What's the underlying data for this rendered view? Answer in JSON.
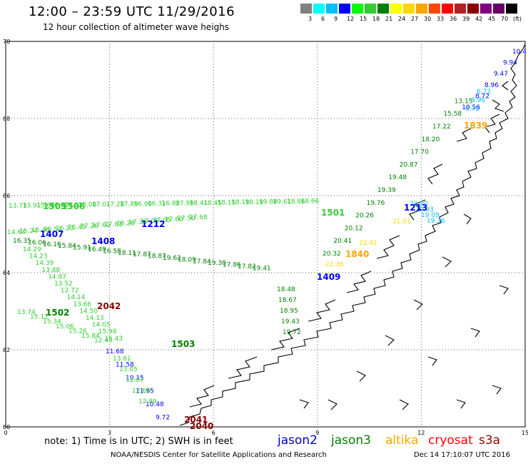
{
  "title": "12:00  –  23:59 UTC 11/29/2016",
  "subtitle": "12 hour collection of altimeter wave heighs",
  "legend": {
    "colors": [
      "#808080",
      "#00ffff",
      "#00bfff",
      "#0000ff",
      "#00ff00",
      "#32cd32",
      "#008000",
      "#ffff00",
      "#ffd700",
      "#ffa500",
      "#ff4500",
      "#ff0000",
      "#b22222",
      "#8b0000",
      "#800080",
      "#660066",
      "#000000"
    ],
    "labels": [
      "3",
      "6",
      "9",
      "12",
      "15",
      "18",
      "21",
      "24",
      "27",
      "30",
      "33",
      "36",
      "39",
      "42",
      "45",
      "70"
    ],
    "unit": "(ft)"
  },
  "axes": {
    "lat_labels": [
      "70",
      "68",
      "66",
      "64",
      "62",
      "60"
    ],
    "lon_labels": [
      "0",
      "3",
      "6",
      "9",
      "12",
      "15"
    ]
  },
  "tracks": [
    {
      "color": "#32cd32",
      "labels": [
        "13.73",
        "13.91",
        "15.60",
        "16.07",
        "16.23",
        "16.08",
        "17.01",
        "17.28",
        "17.89",
        "16.90",
        "16.31",
        "16.88",
        "17.99",
        "18.41",
        "18.45",
        "18.15",
        "18.19",
        "18.19",
        "19.88",
        "19.61",
        "18.86",
        "18.66"
      ]
    },
    {
      "color": "#32cd32",
      "labels": [
        "14.64",
        "15.24",
        "15.46",
        "16.54",
        "16.23",
        "16.45",
        "17.26",
        "17.61",
        "17.61",
        "16.28",
        "17.33",
        "17.05",
        "17.05",
        "17.60",
        "17.50",
        "17.68"
      ]
    },
    {
      "color": "#008000",
      "labels": [
        "16.35",
        "16.06",
        "16.16",
        "15.84",
        "15.91",
        "16.49",
        "16.58",
        "18.11",
        "17.87",
        "18.87",
        "19.62",
        "18.09",
        "17.84",
        "19.30",
        "17.86",
        "17.82",
        "19.41"
      ]
    },
    {
      "color": "#32cd32",
      "labels": [
        "14.29",
        "14.23",
        "14.39",
        "13.88",
        "14.87",
        "13.52",
        "12.72",
        "14.14",
        "13.66",
        "14.50",
        "14.13",
        "14.05",
        "15.98",
        "15.43"
      ]
    },
    {
      "color": "#32cd32",
      "labels": [
        "13.74",
        "15.11",
        "15.34",
        "15.06",
        "15.26",
        "15.84",
        "12.49"
      ]
    },
    {
      "color": "#0000ff",
      "labels": [
        "11.68",
        "11.58",
        "10.15",
        "11.95",
        "10.48",
        "9.72"
      ]
    },
    {
      "color": "#32cd32",
      "labels": [
        "13.61",
        "13.05",
        "12.87",
        "12.66",
        "12.89"
      ]
    },
    {
      "color": "#008000",
      "labels": [
        "18.48",
        "18.67",
        "18.95",
        "19.43",
        "19.72"
      ]
    },
    {
      "color": "#008000",
      "labels": [
        "20.32",
        "20.41",
        "20.12",
        "20.26",
        "19.76",
        "19.39",
        "19.48",
        "20.87",
        "17.70",
        "18.20",
        "17.22",
        "15.58",
        "13.15"
      ]
    },
    {
      "color": "#ffd700",
      "labels": [
        "22.36",
        "22.41",
        "21.01"
      ]
    },
    {
      "color": "#0000ff",
      "labels": [
        "10.4",
        "9.94",
        "9.47",
        "8.96",
        "8.72",
        "10.56"
      ]
    },
    {
      "color": "#00bfff",
      "labels": [
        "6.72",
        "8.96",
        "8.72"
      ]
    },
    {
      "color": "#00bfff",
      "labels": [
        "19.36",
        "19.09",
        "20.93",
        "20.90"
      ]
    }
  ],
  "pass_ids": [
    {
      "text": "1505",
      "color": "#32cd32"
    },
    {
      "text": "1506",
      "color": "#32cd32"
    },
    {
      "text": "1407",
      "color": "#0000ff"
    },
    {
      "text": "1408",
      "color": "#0000ff"
    },
    {
      "text": "1212",
      "color": "#0000ff"
    },
    {
      "text": "1502",
      "color": "#008000"
    },
    {
      "text": "2042",
      "color": "#8b0000"
    },
    {
      "text": "1503",
      "color": "#008000"
    },
    {
      "text": "1840",
      "color": "#ffa500"
    },
    {
      "text": "1409",
      "color": "#0000ff"
    },
    {
      "text": "1213",
      "color": "#0000ff"
    },
    {
      "text": "1501",
      "color": "#32cd32"
    },
    {
      "text": "2041",
      "color": "#8b0000"
    },
    {
      "text": "2040",
      "color": "#8b0000"
    },
    {
      "text": "1839",
      "color": "#ffa500"
    }
  ],
  "note": "note:  1) Time is in UTC;  2) SWH is in feet",
  "satellites": [
    {
      "name": "jason2",
      "color": "#0000cd"
    },
    {
      "name": "jason3",
      "color": "#008000"
    },
    {
      "name": "altika",
      "color": "#ffa500"
    },
    {
      "name": "cryosat",
      "color": "#ff0000"
    },
    {
      "name": "s3a",
      "color": "#8b0000"
    }
  ],
  "footer_left": "NOAA/NESDIS Center for Satellite Applications and Research",
  "footer_right": "Dec 14 17:10:07 UTC 2016"
}
